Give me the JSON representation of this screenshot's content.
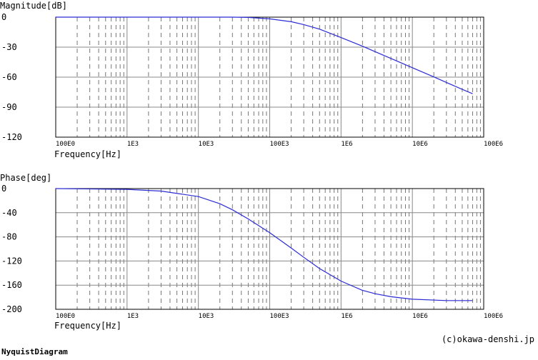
{
  "charts": [
    {
      "id": "magnitude",
      "type": "line",
      "ylabel": "Magnitude[dB]",
      "xlabel": "Frequency[Hz]",
      "yticks": [
        "0",
        "-30",
        "-60",
        "-90",
        "-120"
      ],
      "xticks": [
        "100E0",
        "1E3",
        "10E3",
        "100E3",
        "1E6",
        "10E6",
        "100E6"
      ],
      "ylim": [
        -120,
        0
      ],
      "xlim": [
        100,
        100000000
      ],
      "xscale": "log",
      "grid": true,
      "line_color": "#2b2bd6"
    },
    {
      "id": "phase",
      "type": "line",
      "ylabel": "Phase[deg]",
      "xlabel": "Frequency[Hz]",
      "yticks": [
        "0",
        "-40",
        "-80",
        "-120",
        "-160",
        "-200"
      ],
      "xticks": [
        "100E0",
        "1E3",
        "10E3",
        "100E3",
        "1E6",
        "10E6",
        "100E6"
      ],
      "ylim": [
        -200,
        0
      ],
      "xlim": [
        100,
        100000000
      ],
      "xscale": "log",
      "grid": true,
      "line_color": "#2b2bd6"
    }
  ],
  "chart_data": [
    {
      "type": "line",
      "xlabel": "Frequency[Hz]",
      "ylabel": "Magnitude[dB]",
      "xscale": "log",
      "xlim": [
        100,
        100000000
      ],
      "ylim": [
        -120,
        0
      ],
      "series": [
        {
          "x": [
            100,
            1000,
            10000,
            30000,
            50000,
            100000,
            200000,
            300000,
            500000,
            1000000,
            2000000,
            3000000,
            5000000,
            10000000,
            20000000,
            30000000,
            50000000,
            70000000
          ],
          "y": [
            0,
            0,
            0,
            0,
            -0.3,
            -1.7,
            -4.6,
            -7.4,
            -12,
            -20.4,
            -29.1,
            -34.5,
            -41.3,
            -50.6,
            -59.8,
            -65.3,
            -72.2,
            -76.6
          ]
        }
      ]
    },
    {
      "type": "line",
      "xlabel": "Frequency[Hz]",
      "ylabel": "Phase[deg]",
      "xscale": "log",
      "xlim": [
        100,
        100000000
      ],
      "ylim": [
        -200,
        0
      ],
      "series": [
        {
          "x": [
            100,
            1000,
            3000,
            10000,
            20000,
            30000,
            50000,
            100000,
            200000,
            300000,
            500000,
            1000000,
            2000000,
            3000000,
            5000000,
            10000000,
            30000000,
            70000000
          ],
          "y": [
            0,
            -1.3,
            -4.1,
            -13.2,
            -25.1,
            -35.1,
            -50.3,
            -73.1,
            -98.5,
            -113.8,
            -132.6,
            -153.3,
            -168.6,
            -174.2,
            -179.2,
            -183.3,
            -185.6,
            -185.6
          ]
        }
      ]
    }
  ],
  "footer": {
    "copyright": "(c)okawa-denshi.jp",
    "link_label": "NyquistDiagram"
  }
}
